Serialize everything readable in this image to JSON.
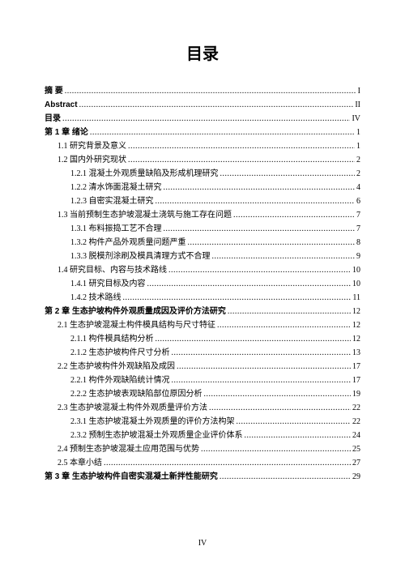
{
  "page": {
    "title": "目录",
    "footer": "IV"
  },
  "toc": [
    {
      "label": "摘  要",
      "page": "I",
      "indent": 0,
      "bold": true
    },
    {
      "label": "Abstract",
      "page": "II",
      "indent": 0,
      "bold": true
    },
    {
      "label": "目录",
      "page": "IV",
      "indent": 0,
      "bold": true
    },
    {
      "label": "第 1 章  绪论",
      "page": "1",
      "indent": 0,
      "bold": true
    },
    {
      "label": "1.1 研究背景及意义",
      "page": "1",
      "indent": 1,
      "bold": false
    },
    {
      "label": "1.2 国内外研究现状",
      "page": "2",
      "indent": 1,
      "bold": false
    },
    {
      "label": "1.2.1 混凝土外观质量缺陷及形成机理研究",
      "page": "2",
      "indent": 2,
      "bold": false
    },
    {
      "label": "1.2.2 清水饰面混凝土研究",
      "page": "4",
      "indent": 2,
      "bold": false
    },
    {
      "label": "1.2.3 自密实混凝土研究",
      "page": "6",
      "indent": 2,
      "bold": false
    },
    {
      "label": "1.3 当前预制生态护坡混凝土浇筑与施工存在问题",
      "page": "7",
      "indent": 1,
      "bold": false
    },
    {
      "label": "1.3.1 布料振捣工艺不合理",
      "page": "7",
      "indent": 2,
      "bold": false
    },
    {
      "label": "1.3.2 构件产品外观质量问题严重",
      "page": "8",
      "indent": 2,
      "bold": false
    },
    {
      "label": "1.3.3 脱模剂涂刷及模具清理方式不合理",
      "page": "9",
      "indent": 2,
      "bold": false
    },
    {
      "label": "1.4 研究目标、内容与技术路线",
      "page": "10",
      "indent": 1,
      "bold": false
    },
    {
      "label": "1.4.1 研究目标及内容",
      "page": "10",
      "indent": 2,
      "bold": false
    },
    {
      "label": "1.4.2 技术路线",
      "page": "11",
      "indent": 2,
      "bold": false
    },
    {
      "label": "第 2 章  生态护坡构件外观质量成因及评价方法研究",
      "page": "12",
      "indent": 0,
      "bold": true
    },
    {
      "label": "2.1 生态护坡混凝土构件模具结构与尺寸特征",
      "page": "12",
      "indent": 1,
      "bold": false
    },
    {
      "label": "2.1.1 构件模具结构分析",
      "page": "12",
      "indent": 2,
      "bold": false
    },
    {
      "label": "2.1.2 生态护坡构件尺寸分析",
      "page": "13",
      "indent": 2,
      "bold": false
    },
    {
      "label": "2.2 生态护坡构件外观缺陷及成因",
      "page": "17",
      "indent": 1,
      "bold": false
    },
    {
      "label": "2.2.1 构件外观缺陷统计情况",
      "page": "17",
      "indent": 2,
      "bold": false
    },
    {
      "label": "2.2.2 生态护坡表观缺陷部位原因分析",
      "page": "19",
      "indent": 2,
      "bold": false
    },
    {
      "label": "2.3 生态护坡混凝土构件外观质量评价方法",
      "page": "22",
      "indent": 1,
      "bold": false
    },
    {
      "label": "2.3.1 生态护坡混凝土外观质量的评价方法构架",
      "page": "22",
      "indent": 2,
      "bold": false
    },
    {
      "label": "2.3.2 预制生态护坡混凝土外观质量企业评价体系",
      "page": "24",
      "indent": 2,
      "bold": false
    },
    {
      "label": "2.4 预制生态护坡混凝土应用范围与优势",
      "page": "25",
      "indent": 1,
      "bold": false
    },
    {
      "label": "2.5 本章小结",
      "page": "27",
      "indent": 1,
      "bold": false
    },
    {
      "label": "第 3 章  生态护坡构件自密实混凝土新拌性能研究",
      "page": "29",
      "indent": 0,
      "bold": true
    }
  ]
}
